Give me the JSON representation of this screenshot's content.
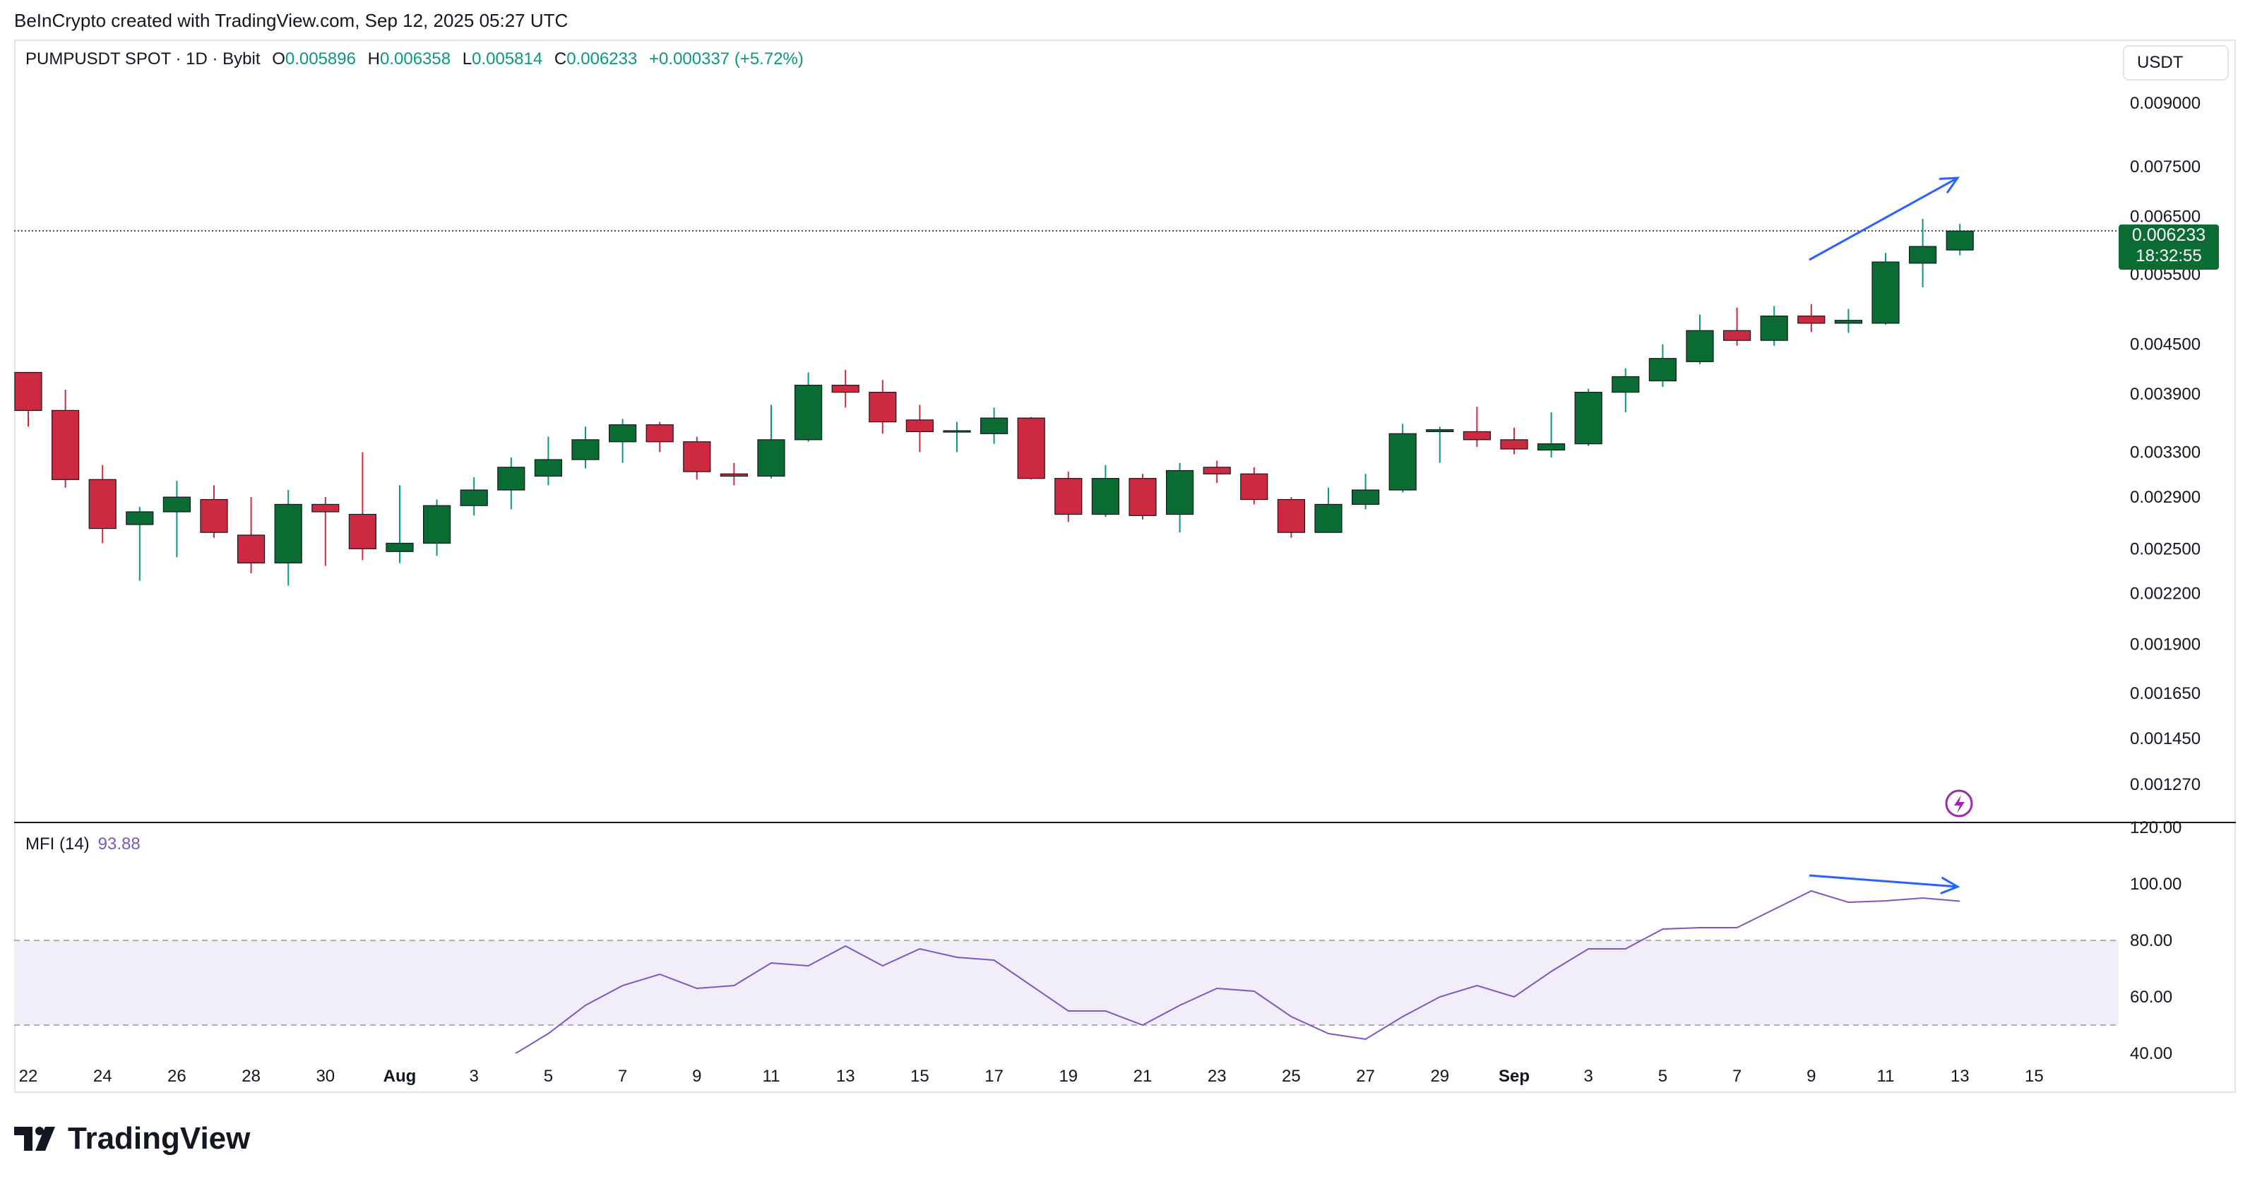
{
  "header": {
    "credit": "BeInCrypto created with TradingView.com, Sep 12, 2025 05:27 UTC"
  },
  "legend": {
    "symbol": "PUMPUSDT SPOT · 1D · Bybit",
    "open_label": "O",
    "open": "0.005896",
    "high_label": "H",
    "high": "0.006358",
    "low_label": "L",
    "low": "0.005814",
    "close_label": "C",
    "close": "0.006233",
    "change": "+0.000337 (+5.72%)"
  },
  "currency_button": "USDT",
  "price_tag": {
    "price": "0.006233",
    "countdown": "18:32:55"
  },
  "logo_text": "TradingView",
  "mfi_legend": {
    "name": "MFI (14)",
    "value": "93.88"
  },
  "colors": {
    "up": "#0a6b33",
    "down": "#cd2a42",
    "wick_up": "#089981",
    "wick_down": "#cd2a42",
    "mfi_line": "#7e57c2",
    "mfi_band": "#f1eef9",
    "arrow": "#2962ff"
  },
  "icons": {
    "lightning": "lightning-bolt-icon",
    "logo": "tradingview-logo-icon"
  },
  "chart_data": [
    {
      "type": "candlestick",
      "title": "PUMPUSDT SPOT · 1D · Bybit",
      "y_scale": "log",
      "ylim": [
        0.00115,
        0.0105
      ],
      "y_ticks": [
        "0.009000",
        "0.007500",
        "0.006500",
        "0.005500",
        "0.004500",
        "0.003900",
        "0.003300",
        "0.002900",
        "0.002500",
        "0.002200",
        "0.001900",
        "0.001650",
        "0.001450",
        "0.001270"
      ],
      "x_ticks": [
        "22",
        "24",
        "26",
        "28",
        "30",
        "Aug",
        "3",
        "5",
        "7",
        "9",
        "11",
        "13",
        "15",
        "17",
        "19",
        "21",
        "23",
        "25",
        "27",
        "29",
        "Sep",
        "3",
        "5",
        "7",
        "9",
        "11",
        "13",
        "15"
      ],
      "current_price": 0.006233,
      "candles": [
        {
          "date": "Jul 22",
          "o": 0.00415,
          "h": 0.00415,
          "l": 0.00355,
          "c": 0.00372
        },
        {
          "date": "Jul 23",
          "o": 0.00372,
          "h": 0.00395,
          "l": 0.00298,
          "c": 0.00305
        },
        {
          "date": "Jul 24",
          "o": 0.00305,
          "h": 0.00318,
          "l": 0.00254,
          "c": 0.00265
        },
        {
          "date": "Jul 25",
          "o": 0.00268,
          "h": 0.00282,
          "l": 0.00228,
          "c": 0.00278
        },
        {
          "date": "Jul 26",
          "o": 0.00278,
          "h": 0.00304,
          "l": 0.00244,
          "c": 0.0029
        },
        {
          "date": "Jul 27",
          "o": 0.00288,
          "h": 0.003,
          "l": 0.00258,
          "c": 0.00262
        },
        {
          "date": "Jul 28",
          "o": 0.0026,
          "h": 0.0029,
          "l": 0.00233,
          "c": 0.0024
        },
        {
          "date": "Jul 29",
          "o": 0.0024,
          "h": 0.00296,
          "l": 0.00225,
          "c": 0.00284
        },
        {
          "date": "Jul 30",
          "o": 0.00284,
          "h": 0.0029,
          "l": 0.00238,
          "c": 0.00278
        },
        {
          "date": "Jul 31",
          "o": 0.00276,
          "h": 0.0033,
          "l": 0.00242,
          "c": 0.0025
        },
        {
          "date": "Aug 1",
          "o": 0.00248,
          "h": 0.003,
          "l": 0.0024,
          "c": 0.00254
        },
        {
          "date": "Aug 2",
          "o": 0.00254,
          "h": 0.00288,
          "l": 0.00245,
          "c": 0.00283
        },
        {
          "date": "Aug 3",
          "o": 0.00283,
          "h": 0.00307,
          "l": 0.00275,
          "c": 0.00296
        },
        {
          "date": "Aug 4",
          "o": 0.00296,
          "h": 0.00325,
          "l": 0.0028,
          "c": 0.00316
        },
        {
          "date": "Aug 5",
          "o": 0.00308,
          "h": 0.00345,
          "l": 0.003,
          "c": 0.00323
        },
        {
          "date": "Aug 6",
          "o": 0.00323,
          "h": 0.00355,
          "l": 0.00315,
          "c": 0.00342
        },
        {
          "date": "Aug 7",
          "o": 0.0034,
          "h": 0.00363,
          "l": 0.0032,
          "c": 0.00357
        },
        {
          "date": "Aug 8",
          "o": 0.00357,
          "h": 0.0036,
          "l": 0.0033,
          "c": 0.0034
        },
        {
          "date": "Aug 9",
          "o": 0.0034,
          "h": 0.00345,
          "l": 0.00305,
          "c": 0.00312
        },
        {
          "date": "Aug 10",
          "o": 0.0031,
          "h": 0.0032,
          "l": 0.003,
          "c": 0.00308
        },
        {
          "date": "Aug 11",
          "o": 0.00308,
          "h": 0.00378,
          "l": 0.00306,
          "c": 0.00342
        },
        {
          "date": "Aug 12",
          "o": 0.00342,
          "h": 0.00415,
          "l": 0.0034,
          "c": 0.004
        },
        {
          "date": "Aug 13",
          "o": 0.004,
          "h": 0.00418,
          "l": 0.00375,
          "c": 0.00392
        },
        {
          "date": "Aug 14",
          "o": 0.00392,
          "h": 0.00406,
          "l": 0.00348,
          "c": 0.0036
        },
        {
          "date": "Aug 15",
          "o": 0.00362,
          "h": 0.00378,
          "l": 0.0033,
          "c": 0.0035
        },
        {
          "date": "Aug 16",
          "o": 0.0035,
          "h": 0.0036,
          "l": 0.0033,
          "c": 0.00351
        },
        {
          "date": "Aug 17",
          "o": 0.00348,
          "h": 0.00375,
          "l": 0.00338,
          "c": 0.00364
        },
        {
          "date": "Aug 18",
          "o": 0.00364,
          "h": 0.00365,
          "l": 0.00305,
          "c": 0.00306
        },
        {
          "date": "Aug 19",
          "o": 0.00306,
          "h": 0.00312,
          "l": 0.0027,
          "c": 0.00276
        },
        {
          "date": "Aug 20",
          "o": 0.00276,
          "h": 0.00318,
          "l": 0.00274,
          "c": 0.00306
        },
        {
          "date": "Aug 21",
          "o": 0.00306,
          "h": 0.0031,
          "l": 0.00272,
          "c": 0.00275
        },
        {
          "date": "Aug 22",
          "o": 0.00276,
          "h": 0.0032,
          "l": 0.00262,
          "c": 0.00313
        },
        {
          "date": "Aug 23",
          "o": 0.00316,
          "h": 0.00322,
          "l": 0.00302,
          "c": 0.0031
        },
        {
          "date": "Aug 24",
          "o": 0.0031,
          "h": 0.00316,
          "l": 0.00284,
          "c": 0.00288
        },
        {
          "date": "Aug 25",
          "o": 0.00288,
          "h": 0.0029,
          "l": 0.00258,
          "c": 0.00262
        },
        {
          "date": "Aug 26",
          "o": 0.00262,
          "h": 0.00298,
          "l": 0.00262,
          "c": 0.00284
        },
        {
          "date": "Aug 27",
          "o": 0.00284,
          "h": 0.0031,
          "l": 0.0028,
          "c": 0.00296
        },
        {
          "date": "Aug 28",
          "o": 0.00296,
          "h": 0.00358,
          "l": 0.00294,
          "c": 0.00348
        },
        {
          "date": "Aug 29",
          "o": 0.0035,
          "h": 0.00355,
          "l": 0.0032,
          "c": 0.00352
        },
        {
          "date": "Aug 30",
          "o": 0.0035,
          "h": 0.00376,
          "l": 0.00335,
          "c": 0.00342
        },
        {
          "date": "Aug 31",
          "o": 0.00342,
          "h": 0.00354,
          "l": 0.00328,
          "c": 0.00333
        },
        {
          "date": "Sep 1",
          "o": 0.00332,
          "h": 0.0037,
          "l": 0.00325,
          "c": 0.00338
        },
        {
          "date": "Sep 2",
          "o": 0.00338,
          "h": 0.00396,
          "l": 0.00336,
          "c": 0.00392
        },
        {
          "date": "Sep 3",
          "o": 0.00392,
          "h": 0.0042,
          "l": 0.0037,
          "c": 0.0041
        },
        {
          "date": "Sep 4",
          "o": 0.00405,
          "h": 0.0045,
          "l": 0.00398,
          "c": 0.00432
        },
        {
          "date": "Sep 5",
          "o": 0.00428,
          "h": 0.0049,
          "l": 0.00425,
          "c": 0.00468
        },
        {
          "date": "Sep 6",
          "o": 0.00468,
          "h": 0.005,
          "l": 0.00448,
          "c": 0.00455
        },
        {
          "date": "Sep 7",
          "o": 0.00455,
          "h": 0.00502,
          "l": 0.00448,
          "c": 0.00488
        },
        {
          "date": "Sep 8",
          "o": 0.00488,
          "h": 0.00505,
          "l": 0.00466,
          "c": 0.00478
        },
        {
          "date": "Sep 9",
          "o": 0.00478,
          "h": 0.00498,
          "l": 0.00465,
          "c": 0.00482
        },
        {
          "date": "Sep 10",
          "o": 0.00478,
          "h": 0.00585,
          "l": 0.00476,
          "c": 0.0057
        },
        {
          "date": "Sep 11",
          "o": 0.00568,
          "h": 0.00645,
          "l": 0.0053,
          "c": 0.00596
        },
        {
          "date": "Sep 12",
          "o": 0.0059,
          "h": 0.00636,
          "l": 0.00581,
          "c": 0.00623
        }
      ]
    },
    {
      "type": "line",
      "title": "MFI (14)",
      "ylim": [
        40,
        120
      ],
      "y_ticks": [
        "120.00",
        "100.00",
        "80.00",
        "60.00",
        "40.00"
      ],
      "band": [
        50,
        80
      ],
      "dates": [
        "Aug 4",
        "Aug 5",
        "Aug 6",
        "Aug 7",
        "Aug 8",
        "Aug 9",
        "Aug 10",
        "Aug 11",
        "Aug 12",
        "Aug 13",
        "Aug 14",
        "Aug 15",
        "Aug 16",
        "Aug 17",
        "Aug 18",
        "Aug 19",
        "Aug 20",
        "Aug 21",
        "Aug 22",
        "Aug 23",
        "Aug 24",
        "Aug 25",
        "Aug 26",
        "Aug 27",
        "Aug 28",
        "Aug 29",
        "Aug 30",
        "Aug 31",
        "Sep 1",
        "Sep 2",
        "Sep 3",
        "Sep 4",
        "Sep 5",
        "Sep 6",
        "Sep 7",
        "Sep 8",
        "Sep 9",
        "Sep 10",
        "Sep 11",
        "Sep 12"
      ],
      "values": [
        39,
        47,
        57,
        64,
        68,
        63,
        64,
        72,
        71,
        78,
        71,
        77,
        74,
        73,
        64,
        55,
        55,
        50,
        57,
        63,
        62,
        53,
        47,
        45,
        53,
        60,
        64,
        60,
        69,
        77,
        77,
        84,
        84.5,
        84.5,
        91,
        97.5,
        93.5,
        94,
        95,
        93.88
      ]
    }
  ]
}
